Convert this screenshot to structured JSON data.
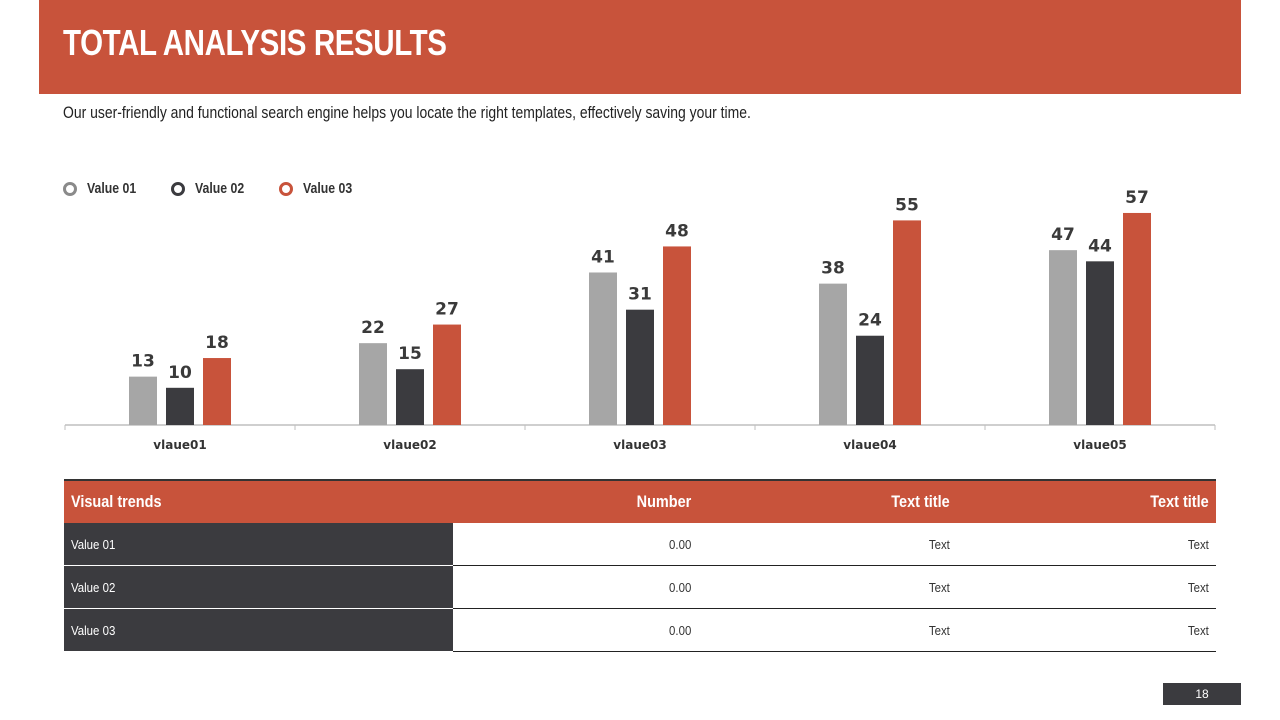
{
  "header": {
    "title": "TOTAL ANALYSIS RESULTS",
    "subtitle": "Our user-friendly and functional search engine helps you locate the right templates, effectively saving your time."
  },
  "colors": {
    "accent": "#c8533b",
    "series1": "#a6a6a6",
    "series2": "#3b3b3f",
    "series3": "#c8533b",
    "axis": "#bfbfbf"
  },
  "chart_data": {
    "type": "bar",
    "categories": [
      "vlaue01",
      "vlaue02",
      "vlaue03",
      "vlaue04",
      "vlaue05"
    ],
    "series": [
      {
        "name": "Value 01",
        "values": [
          13,
          22,
          41,
          38,
          47
        ]
      },
      {
        "name": "Value 02",
        "values": [
          10,
          15,
          31,
          24,
          44
        ]
      },
      {
        "name": "Value 03",
        "values": [
          18,
          27,
          48,
          55,
          57
        ]
      }
    ],
    "title": "",
    "xlabel": "",
    "ylabel": "",
    "ylim": [
      0,
      60
    ],
    "legend": "top-left",
    "grid": false,
    "data_labels": true
  },
  "table": {
    "headers": [
      "Visual trends",
      "Number",
      "Text title",
      "Text title"
    ],
    "rows": [
      [
        "Value 01",
        "0.00",
        "Text",
        "Text"
      ],
      [
        "Value 02",
        "0.00",
        "Text",
        "Text"
      ],
      [
        "Value 03",
        "0.00",
        "Text",
        "Text"
      ]
    ]
  },
  "footer": {
    "page_number": "18"
  }
}
